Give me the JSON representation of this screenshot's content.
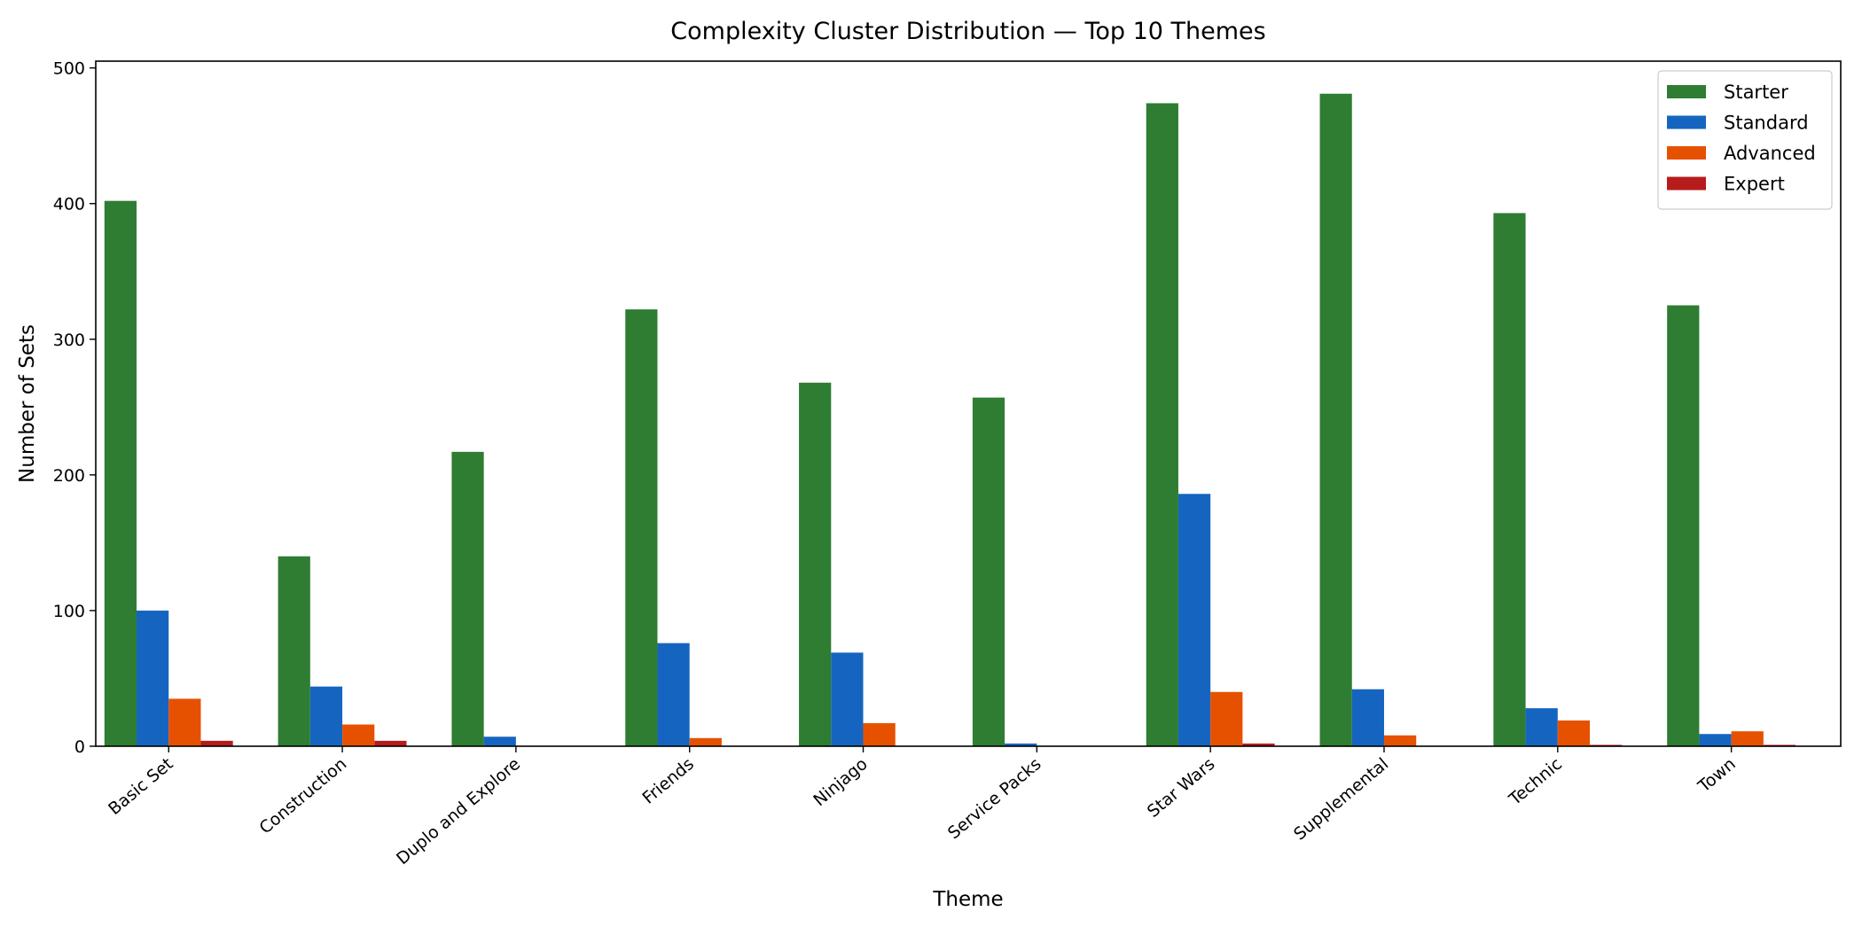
{
  "chart_data": {
    "type": "bar",
    "title": "Complexity Cluster Distribution — Top 10 Themes",
    "xlabel": "Theme",
    "ylabel": "Number of Sets",
    "categories": [
      "Basic Set",
      "Construction",
      "Duplo and Explore",
      "Friends",
      "Ninjago",
      "Service Packs",
      "Star Wars",
      "Supplemental",
      "Technic",
      "Town"
    ],
    "series": [
      {
        "name": "Starter",
        "color": "#2e7d32",
        "values": [
          402,
          140,
          217,
          322,
          268,
          257,
          474,
          481,
          393,
          325
        ]
      },
      {
        "name": "Standard",
        "color": "#1565c0",
        "values": [
          100,
          44,
          7,
          76,
          69,
          2,
          186,
          42,
          28,
          9
        ]
      },
      {
        "name": "Advanced",
        "color": "#e65100",
        "values": [
          35,
          16,
          0,
          6,
          17,
          0,
          40,
          8,
          19,
          11
        ]
      },
      {
        "name": "Expert",
        "color": "#b71c1c",
        "values": [
          4,
          4,
          0,
          0,
          0,
          0,
          2,
          0,
          1,
          1
        ]
      }
    ],
    "ylim": [
      0,
      505
    ],
    "yticks": [
      0,
      100,
      200,
      300,
      400,
      500
    ],
    "grid": false,
    "legend_position": "top-right"
  }
}
